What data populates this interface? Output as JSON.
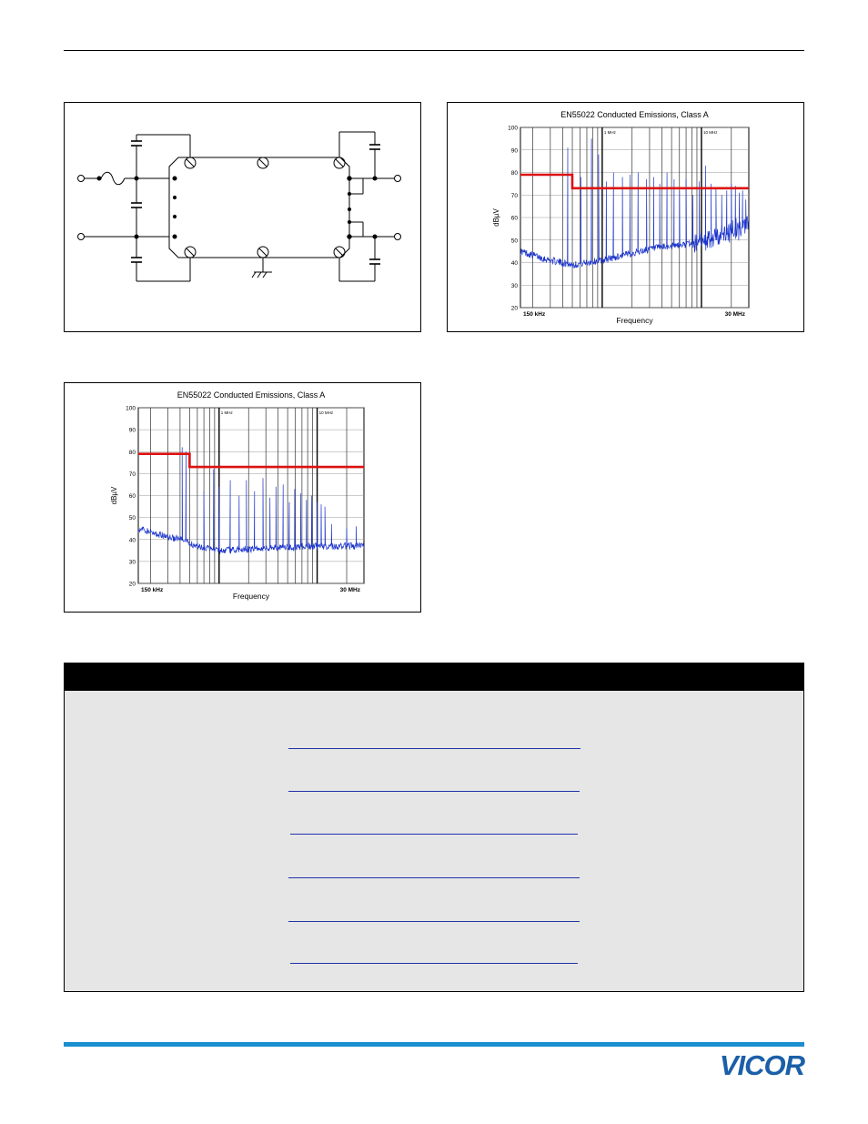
{
  "colors": {
    "limit_line": "#dd1111",
    "trace": "#1a33cc",
    "rule_blue": "#1a8fd0",
    "logo_blue": "#1b5fa8"
  },
  "logo": {
    "text": "VICOR"
  },
  "chart_data": [
    {
      "type": "line",
      "title": "EN55022 Conducted Emissions, Class A",
      "xlabel": "Frequency",
      "ylabel": "dBµV",
      "x_scale": "log",
      "xlim_labels": [
        "150 kHz",
        "30 MHz"
      ],
      "x_marker_labels": [
        "1 MHz",
        "10 MHz"
      ],
      "ylim": [
        20,
        100
      ],
      "y_ticks": [
        20,
        30,
        40,
        50,
        60,
        70,
        80,
        90,
        100
      ],
      "grid": true,
      "limit_line": {
        "values": [
          [
            0.15,
            79
          ],
          [
            0.5,
            79
          ],
          [
            0.5,
            73
          ],
          [
            30,
            73
          ]
        ]
      },
      "trace_shape": {
        "baseline": [
          [
            0.15,
            45
          ],
          [
            0.3,
            41
          ],
          [
            0.5,
            39
          ],
          [
            1,
            41
          ],
          [
            3,
            46
          ],
          [
            10,
            49
          ],
          [
            20,
            54
          ],
          [
            30,
            56
          ]
        ],
        "peaks": [
          [
            0.45,
            91
          ],
          [
            0.61,
            78
          ],
          [
            0.78,
            95
          ],
          [
            0.92,
            88
          ],
          [
            1.1,
            76
          ],
          [
            1.3,
            80
          ],
          [
            1.6,
            78
          ],
          [
            1.9,
            79
          ],
          [
            2.3,
            80
          ],
          [
            2.8,
            77
          ],
          [
            3.3,
            78
          ],
          [
            3.8,
            75
          ],
          [
            4.5,
            80
          ],
          [
            5.3,
            77
          ],
          [
            6.0,
            72
          ],
          [
            7.0,
            77
          ],
          [
            8.2,
            70
          ],
          [
            9.5,
            76
          ],
          [
            11,
            83
          ],
          [
            12.5,
            75
          ],
          [
            14,
            73
          ],
          [
            16,
            70
          ],
          [
            18,
            72
          ],
          [
            20,
            75
          ],
          [
            22,
            74
          ],
          [
            24,
            71
          ],
          [
            26,
            72
          ],
          [
            28,
            68
          ]
        ]
      }
    },
    {
      "type": "line",
      "title": "EN55022 Conducted Emissions, Class A",
      "xlabel": "Frequency",
      "ylabel": "dBµV",
      "x_scale": "log",
      "xlim_labels": [
        "150 kHz",
        "30 MHz"
      ],
      "x_marker_labels": [
        "1 MHz",
        "10 MHz"
      ],
      "ylim": [
        20,
        100
      ],
      "y_ticks": [
        20,
        30,
        40,
        50,
        60,
        70,
        80,
        90,
        100
      ],
      "grid": true,
      "limit_line": {
        "values": [
          [
            0.15,
            79
          ],
          [
            0.5,
            79
          ],
          [
            0.5,
            73
          ],
          [
            30,
            73
          ]
        ]
      },
      "trace_shape": {
        "baseline": [
          [
            0.15,
            45
          ],
          [
            0.25,
            42
          ],
          [
            0.4,
            40
          ],
          [
            0.6,
            37
          ],
          [
            1,
            35
          ],
          [
            3,
            36
          ],
          [
            10,
            37
          ],
          [
            30,
            37
          ]
        ],
        "peaks": [
          [
            0.42,
            82
          ],
          [
            0.46,
            80
          ],
          [
            0.7,
            62
          ],
          [
            0.88,
            72
          ],
          [
            1.0,
            64
          ],
          [
            1.3,
            67
          ],
          [
            1.6,
            60
          ],
          [
            1.9,
            67
          ],
          [
            2.3,
            62
          ],
          [
            2.8,
            68
          ],
          [
            3.3,
            59
          ],
          [
            3.8,
            64
          ],
          [
            4.5,
            65
          ],
          [
            5.2,
            57
          ],
          [
            5.9,
            63
          ],
          [
            6.8,
            61
          ],
          [
            7.8,
            58
          ],
          [
            8.8,
            60
          ],
          [
            10,
            57
          ],
          [
            11,
            56
          ],
          [
            12,
            55
          ],
          [
            14,
            47
          ],
          [
            20,
            45
          ],
          [
            25,
            46
          ]
        ]
      }
    }
  ]
}
